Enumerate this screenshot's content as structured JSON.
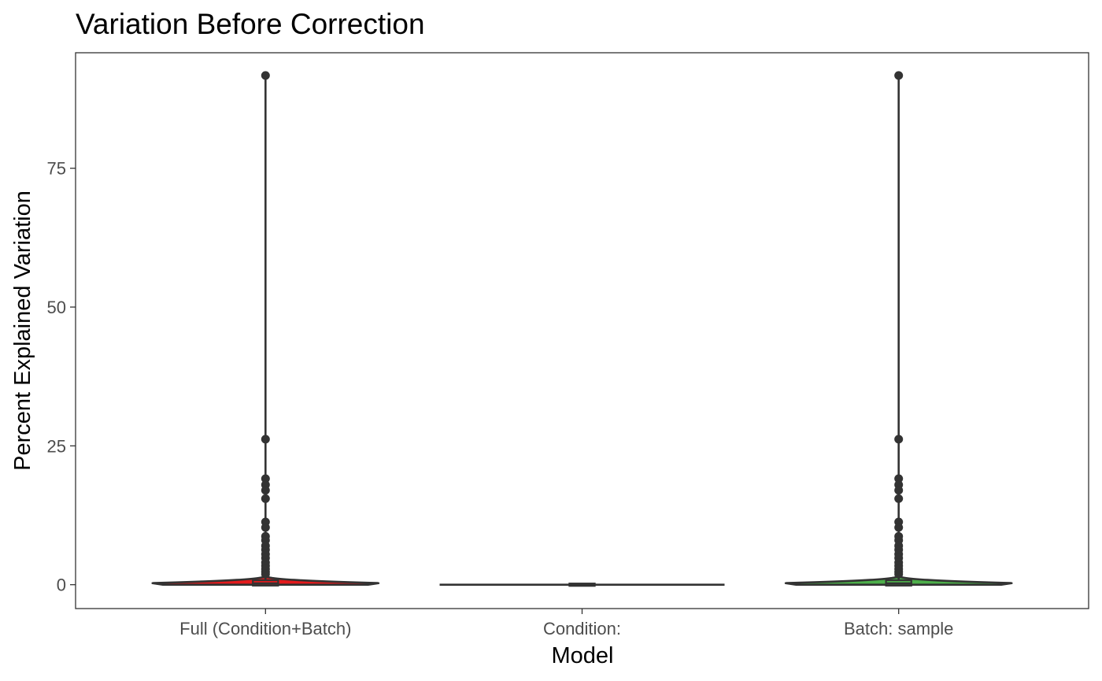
{
  "chart_data": {
    "type": "violin",
    "title": "Variation Before Correction",
    "xlabel": "Model",
    "ylabel": "Percent Explained Variation",
    "categories": [
      "Full (Condition+Batch)",
      "Condition:",
      "Batch: sample"
    ],
    "ylim": [
      -4.3,
      95.8
    ],
    "yticks": [
      0,
      25,
      50,
      75
    ],
    "grid": false,
    "legend": "none",
    "series": [
      {
        "category": "Full (Condition+Batch)",
        "fill_color": "#e41a1c",
        "max_density_half_width": 0.36,
        "median": 0.2,
        "q1": 0.05,
        "q3": 0.6,
        "whisker_low": 0,
        "whisker_high": 1.5,
        "outliers": [
          91.7,
          26.2,
          19.1,
          18.0,
          17.0,
          15.5,
          11.3,
          10.3,
          8.7,
          8.0,
          7.0,
          6.3,
          5.5,
          4.8,
          4.0,
          3.4,
          2.8,
          2.3,
          1.9
        ]
      },
      {
        "category": "Condition:",
        "fill_color": "#377eb8",
        "max_density_half_width": 0.45,
        "median": 0,
        "q1": 0,
        "q3": 0,
        "whisker_low": 0,
        "whisker_high": 0,
        "outliers": []
      },
      {
        "category": "Batch: sample",
        "fill_color": "#4daf4a",
        "max_density_half_width": 0.36,
        "median": 0.2,
        "q1": 0.05,
        "q3": 0.6,
        "whisker_low": 0,
        "whisker_high": 1.5,
        "outliers": [
          91.7,
          26.2,
          19.1,
          18.0,
          17.0,
          15.5,
          11.3,
          10.3,
          8.7,
          8.0,
          7.0,
          6.3,
          5.5,
          4.8,
          4.0,
          3.4,
          2.8,
          2.3,
          1.9
        ]
      }
    ]
  }
}
